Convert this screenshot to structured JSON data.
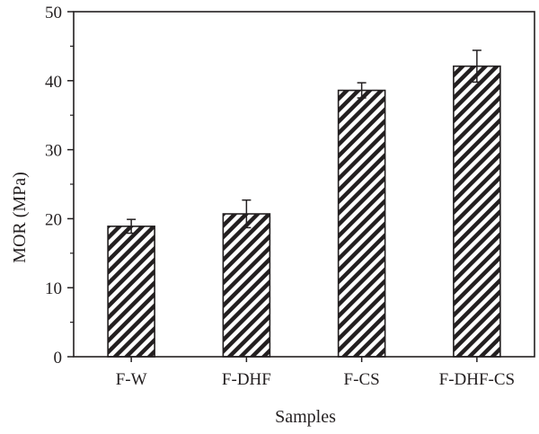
{
  "chart_data": {
    "type": "bar",
    "categories": [
      "F-W",
      "F-DHF",
      "F-CS",
      "F-DHF-CS"
    ],
    "series": [
      {
        "values": [
          18.9,
          20.7,
          38.6,
          42.1
        ],
        "errors": [
          1.0,
          2.0,
          1.1,
          2.3
        ]
      }
    ],
    "xlabel": "Samples",
    "ylabel": "MOR (MPa)",
    "ylim": [
      0,
      50
    ],
    "yticks": [
      0,
      10,
      20,
      30,
      40,
      50
    ],
    "bar_fill": "diagonal-hatch",
    "colors": {
      "ink": "#231f20",
      "background": "#ffffff"
    },
    "grid": false,
    "legend": "none"
  }
}
